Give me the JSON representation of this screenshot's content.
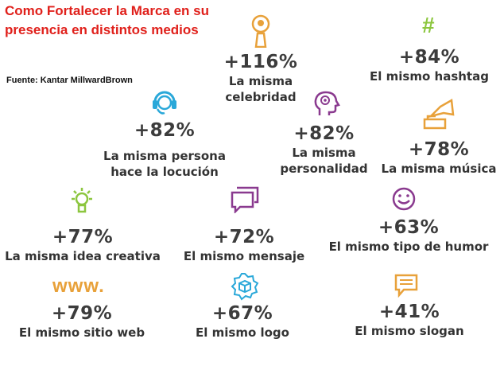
{
  "title": "Como Fortalecer la Marca en su presencia en distintos medios",
  "source": "Fuente: Kantar MillwardBrown",
  "icons": {
    "celebrity": "microphone-person-icon",
    "hashtag": "#",
    "voice": "headset-person-icon",
    "personality": "head-gear-icon",
    "music": "gramophone-icon",
    "creative": "lightbulb-icon",
    "message": "chat-bubbles-icon",
    "humor": "smiley-icon",
    "web": "www.",
    "logo": "cube-logo-icon",
    "slogan": "speech-bubble-icon"
  },
  "colors": {
    "title": "#e0201b",
    "gold": "#e8a13a",
    "green": "#8cc63f",
    "blue": "#2aa8d9",
    "purple": "#8a3a8f"
  },
  "items": {
    "celebrity": {
      "value": "+116%",
      "label_1": "La misma",
      "label_2": "celebridad"
    },
    "hashtag": {
      "value": "+84%",
      "label_1": "El mismo hashtag"
    },
    "voice": {
      "value": "+82%",
      "label_1": "La misma persona",
      "label_2": "hace la locución"
    },
    "personality": {
      "value": "+82%",
      "label_1": "La misma",
      "label_2": "personalidad"
    },
    "music": {
      "value": "+78%",
      "label_1": "La misma música"
    },
    "creative": {
      "value": "+77%",
      "label_1": "La misma idea creativa"
    },
    "message": {
      "value": "+72%",
      "label_1": "El mismo mensaje"
    },
    "humor": {
      "value": "+63%",
      "label_1": "El mismo tipo de humor"
    },
    "web": {
      "value": "+79%",
      "label_1": "El mismo sitio web"
    },
    "logo": {
      "value": "+67%",
      "label_1": "El mismo logo"
    },
    "slogan": {
      "value": "+41%",
      "label_1": "El mismo slogan"
    }
  }
}
